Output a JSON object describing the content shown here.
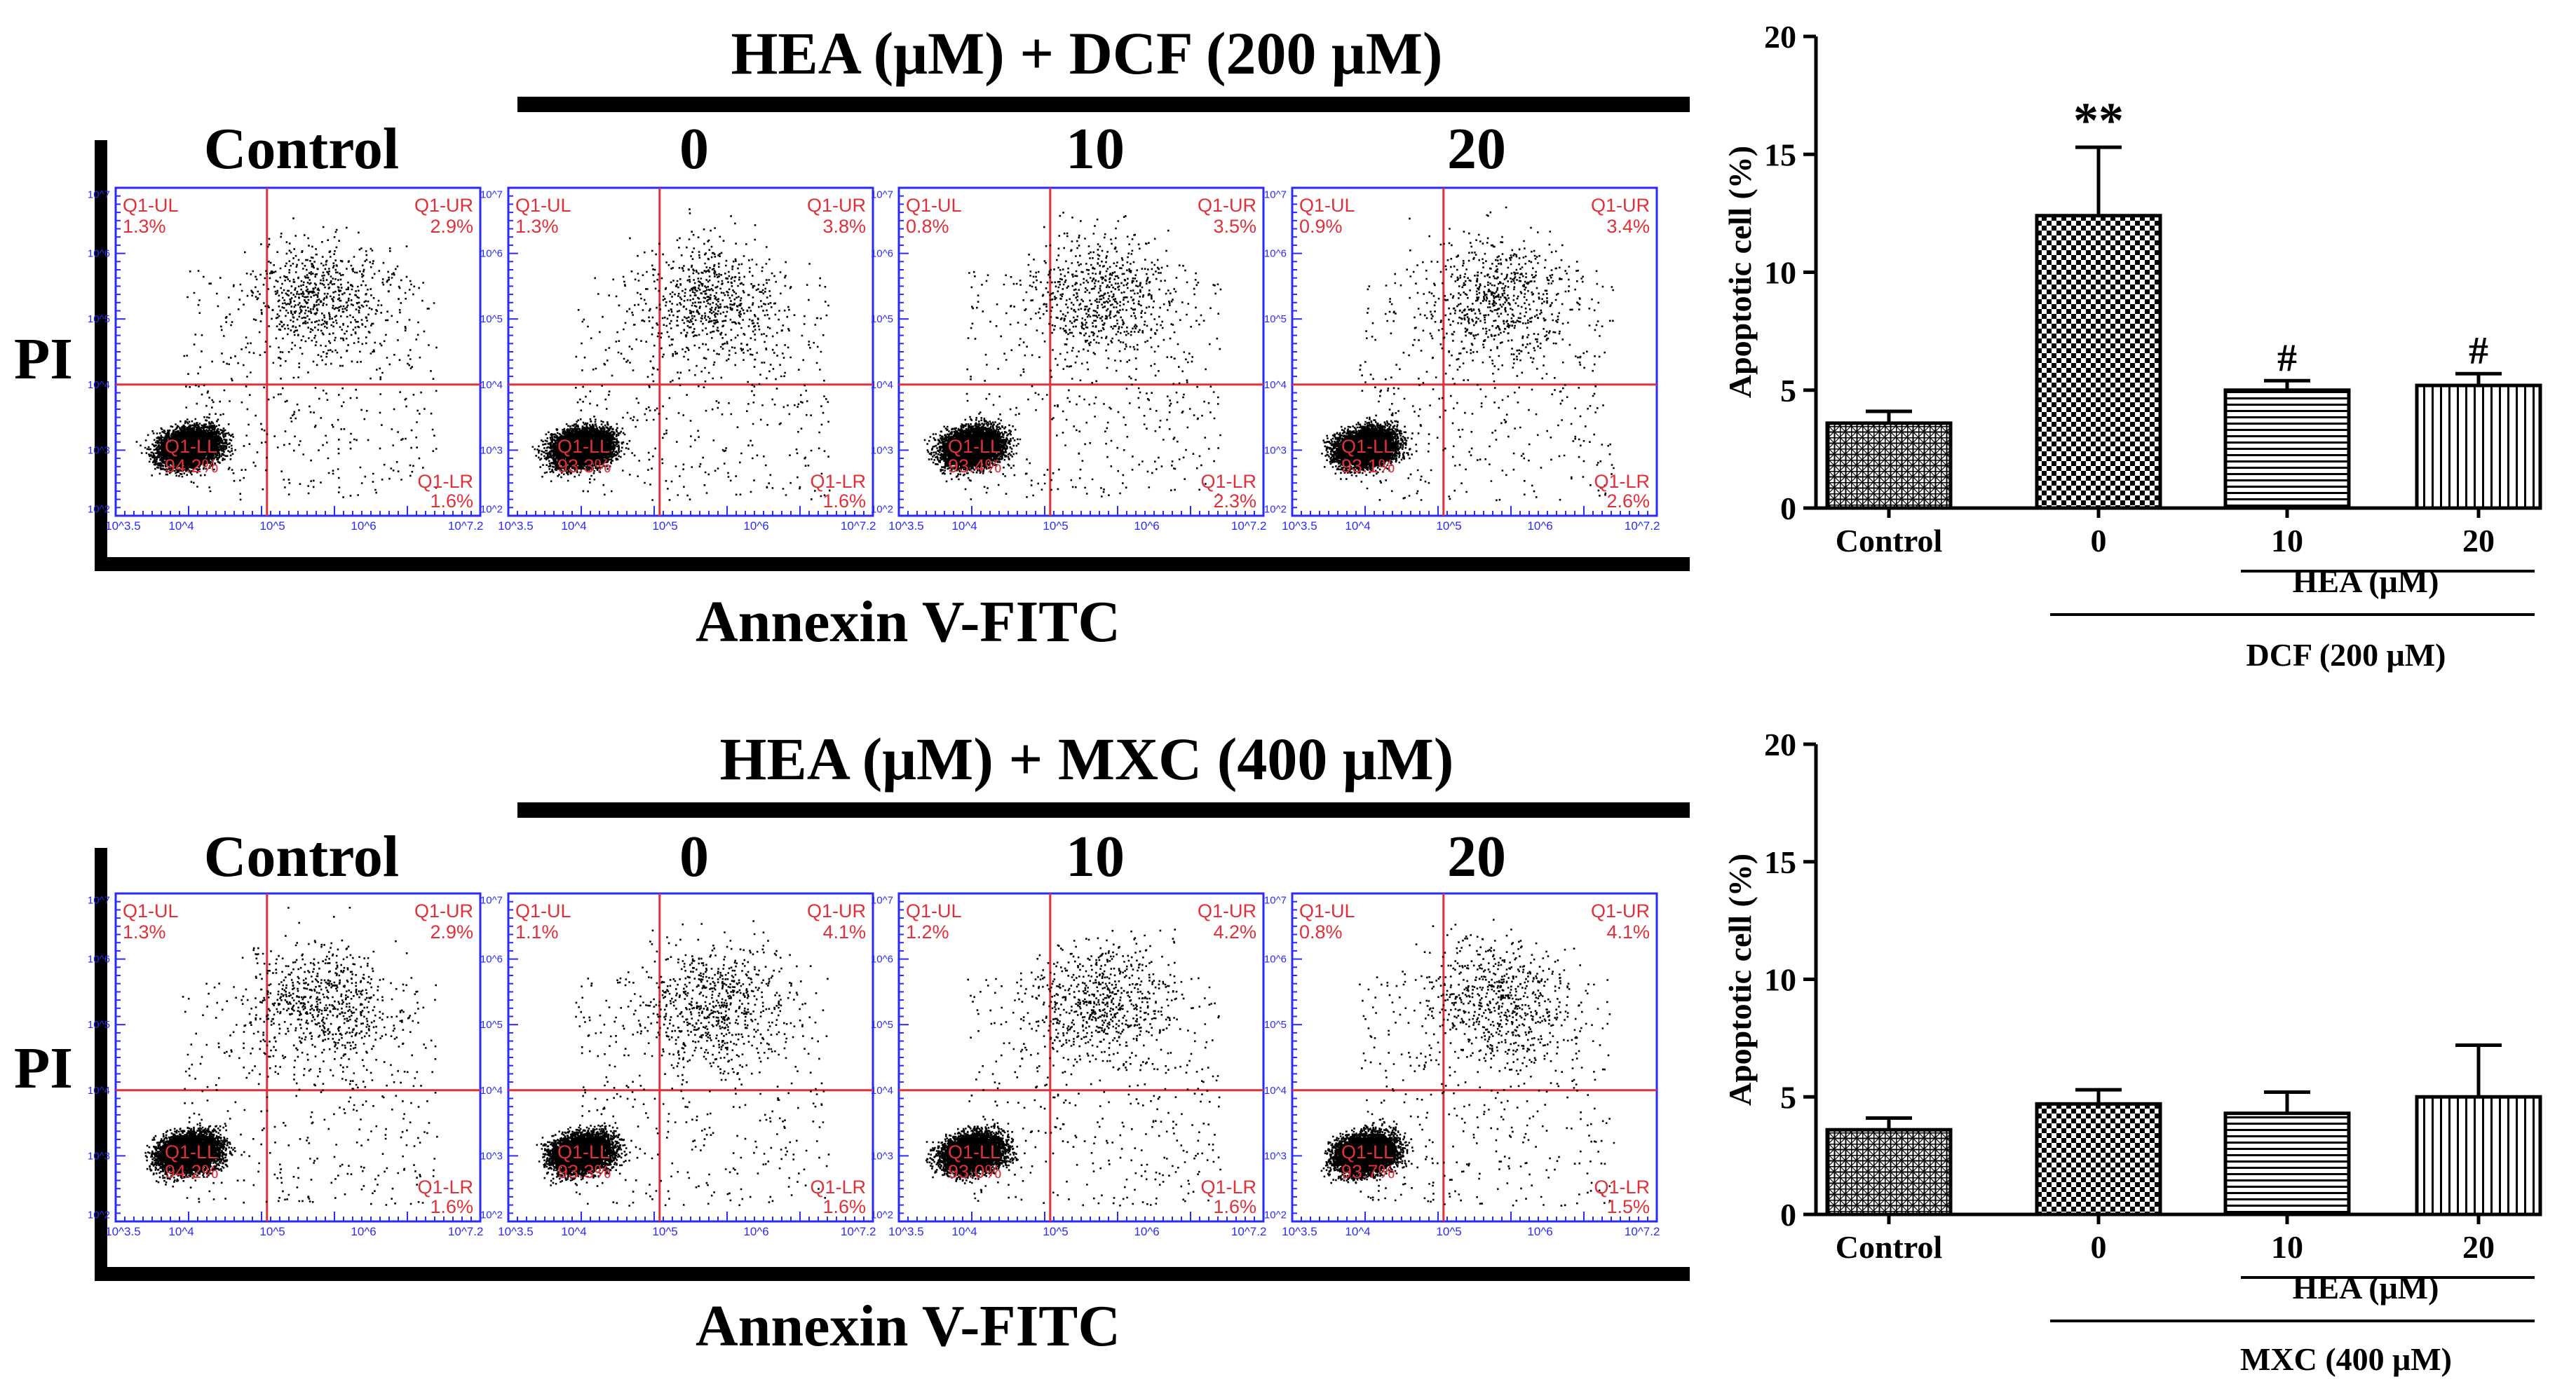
{
  "panels": [
    {
      "header": "HEA (μM) + DCF (200 μM)",
      "y_axis_label": "PI",
      "x_axis_label": "Annexin V-FITC",
      "columns": [
        "Control",
        "0",
        "10",
        "20"
      ],
      "quadrant_names": {
        "ul": "Q1-UL",
        "ur": "Q1-UR",
        "ll": "Q1-LL",
        "lr": "Q1-LR"
      },
      "x_tick_labels": [
        "10^3.5",
        "10^4",
        "10^5",
        "10^6",
        "10^7.2"
      ],
      "y_tick_labels": [
        "10^2",
        "10^3",
        "10^4",
        "10^5",
        "10^6",
        "10^7"
      ],
      "plots": [
        {
          "ul": "1.3%",
          "ur": "2.9%",
          "ll": "94.2%",
          "lr": "1.6%"
        },
        {
          "ul": "1.3%",
          "ur": "3.8%",
          "ll": "93.3%",
          "lr": "1.6%"
        },
        {
          "ul": "0.8%",
          "ur": "3.5%",
          "ll": "93.4%",
          "lr": "2.3%"
        },
        {
          "ul": "0.9%",
          "ur": "3.4%",
          "ll": "93.1%",
          "lr": "2.6%"
        }
      ]
    },
    {
      "header": "HEA (μM) + MXC (400 μM)",
      "y_axis_label": "PI",
      "x_axis_label": "Annexin V-FITC",
      "columns": [
        "Control",
        "0",
        "10",
        "20"
      ],
      "quadrant_names": {
        "ul": "Q1-UL",
        "ur": "Q1-UR",
        "ll": "Q1-LL",
        "lr": "Q1-LR"
      },
      "x_tick_labels": [
        "10^3.5",
        "10^4",
        "10^5",
        "10^6",
        "10^7.2"
      ],
      "y_tick_labels": [
        "10^2",
        "10^3",
        "10^4",
        "10^5",
        "10^6",
        "10^7"
      ],
      "plots": [
        {
          "ul": "1.3%",
          "ur": "2.9%",
          "ll": "94.2%",
          "lr": "1.6%"
        },
        {
          "ul": "1.1%",
          "ur": "4.1%",
          "ll": "93.3%",
          "lr": "1.6%"
        },
        {
          "ul": "1.2%",
          "ur": "4.2%",
          "ll": "93.0%",
          "lr": "1.6%"
        },
        {
          "ul": "0.8%",
          "ur": "4.1%",
          "ll": "93.7%",
          "lr": "1.5%"
        }
      ]
    }
  ],
  "chart_data": [
    {
      "type": "bar",
      "title": "",
      "ylabel": "Apoptotic cell (%)",
      "xlabel": "",
      "ylim": [
        0,
        20
      ],
      "yticks": [
        0,
        5,
        10,
        15,
        20
      ],
      "categories": [
        "Control",
        "0",
        "10",
        "20"
      ],
      "values": [
        3.6,
        12.4,
        5.0,
        5.2
      ],
      "errors": [
        0.5,
        2.9,
        0.4,
        0.5
      ],
      "annotations": [
        "",
        "**",
        "#",
        "#"
      ],
      "patterns": [
        "grid",
        "checker",
        "hlines",
        "vlines"
      ],
      "group_label_inner": "HEA (μM)",
      "group_label_outer": "DCF (200 μM)"
    },
    {
      "type": "bar",
      "title": "",
      "ylabel": "Apoptotic cell (%)",
      "xlabel": "",
      "ylim": [
        0,
        20
      ],
      "yticks": [
        0,
        5,
        10,
        15,
        20
      ],
      "categories": [
        "Control",
        "0",
        "10",
        "20"
      ],
      "values": [
        3.6,
        4.7,
        4.3,
        5.0
      ],
      "errors": [
        0.5,
        0.6,
        0.9,
        2.2
      ],
      "annotations": [
        "",
        "",
        "",
        ""
      ],
      "patterns": [
        "grid",
        "checker",
        "hlines",
        "vlines"
      ],
      "group_label_inner": "HEA (μM)",
      "group_label_outer": "MXC (400 μM)"
    }
  ]
}
